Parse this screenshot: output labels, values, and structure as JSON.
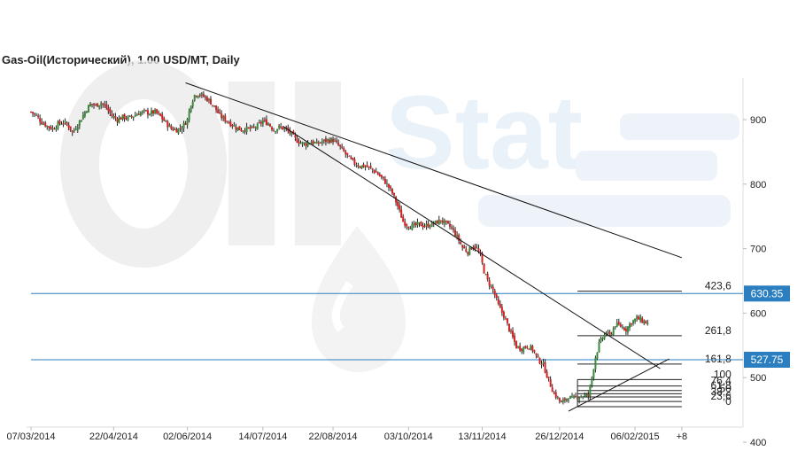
{
  "chart_data": {
    "type": "candlestick",
    "title": "Gas-Oil(Исторический), 1.00 USD/MT, Daily",
    "ylim": [
      400,
      960
    ],
    "y_ticks": [
      400,
      500,
      600,
      700,
      800,
      900
    ],
    "x_ticks": [
      "07/03/2014",
      "22/04/2014",
      "02/06/2014",
      "14/07/2014",
      "22/08/2014",
      "03/10/2014",
      "13/11/2014",
      "26/12/2014",
      "06/02/2015",
      "+8"
    ],
    "x_range_days": [
      0,
      367
    ],
    "x_tick_days": [
      0,
      46,
      87,
      129,
      168,
      210,
      251,
      294,
      336,
      362
    ],
    "up_color": "#3a8a3a",
    "down_color": "#d42020",
    "closes": [
      [
        0,
        912
      ],
      [
        3,
        906
      ],
      [
        6,
        896
      ],
      [
        9,
        890
      ],
      [
        12,
        886
      ],
      [
        15,
        893
      ],
      [
        18,
        896
      ],
      [
        21,
        890
      ],
      [
        23,
        880
      ],
      [
        25,
        888
      ],
      [
        27,
        897
      ],
      [
        30,
        912
      ],
      [
        33,
        924
      ],
      [
        36,
        922
      ],
      [
        39,
        926
      ],
      [
        42,
        918
      ],
      [
        45,
        906
      ],
      [
        48,
        900
      ],
      [
        51,
        904
      ],
      [
        54,
        902
      ],
      [
        57,
        906
      ],
      [
        60,
        910
      ],
      [
        63,
        912
      ],
      [
        66,
        910
      ],
      [
        69,
        912
      ],
      [
        72,
        905
      ],
      [
        75,
        895
      ],
      [
        78,
        886
      ],
      [
        81,
        884
      ],
      [
        84,
        888
      ],
      [
        87,
        900
      ],
      [
        89,
        925
      ],
      [
        91,
        938
      ],
      [
        93,
        940
      ],
      [
        96,
        936
      ],
      [
        99,
        930
      ],
      [
        102,
        920
      ],
      [
        105,
        906
      ],
      [
        108,
        900
      ],
      [
        111,
        894
      ],
      [
        114,
        888
      ],
      [
        117,
        884
      ],
      [
        120,
        886
      ],
      [
        123,
        886
      ],
      [
        126,
        890
      ],
      [
        129,
        898
      ],
      [
        132,
        894
      ],
      [
        135,
        884
      ],
      [
        138,
        888
      ],
      [
        141,
        886
      ],
      [
        144,
        880
      ],
      [
        147,
        870
      ],
      [
        150,
        864
      ],
      [
        153,
        862
      ],
      [
        156,
        866
      ],
      [
        159,
        862
      ],
      [
        162,
        866
      ],
      [
        165,
        868
      ],
      [
        168,
        868
      ],
      [
        171,
        860
      ],
      [
        174,
        850
      ],
      [
        177,
        840
      ],
      [
        180,
        832
      ],
      [
        183,
        828
      ],
      [
        186,
        828
      ],
      [
        189,
        824
      ],
      [
        192,
        818
      ],
      [
        195,
        810
      ],
      [
        198,
        800
      ],
      [
        201,
        786
      ],
      [
        204,
        766
      ],
      [
        207,
        742
      ],
      [
        210,
        735
      ],
      [
        213,
        735
      ],
      [
        216,
        738
      ],
      [
        219,
        735
      ],
      [
        222,
        737
      ],
      [
        225,
        740
      ],
      [
        228,
        744
      ],
      [
        231,
        738
      ],
      [
        234,
        732
      ],
      [
        237,
        718
      ],
      [
        240,
        702
      ],
      [
        243,
        695
      ],
      [
        246,
        705
      ],
      [
        248,
        700
      ],
      [
        250,
        688
      ],
      [
        252,
        665
      ],
      [
        254,
        650
      ],
      [
        257,
        636
      ],
      [
        260,
        612
      ],
      [
        263,
        596
      ],
      [
        266,
        575
      ],
      [
        268,
        562
      ],
      [
        270,
        548
      ],
      [
        273,
        545
      ],
      [
        276,
        549
      ],
      [
        279,
        544
      ],
      [
        282,
        528
      ],
      [
        285,
        520
      ],
      [
        288,
        495
      ],
      [
        291,
        475
      ],
      [
        293,
        468
      ],
      [
        295,
        460
      ],
      [
        297,
        466
      ],
      [
        299,
        470
      ],
      [
        301,
        467
      ],
      [
        304,
        470
      ],
      [
        307,
        472
      ],
      [
        310,
        472
      ],
      [
        312,
        500
      ],
      [
        314,
        532
      ],
      [
        316,
        552
      ],
      [
        318,
        562
      ],
      [
        320,
        570
      ],
      [
        322,
        565
      ],
      [
        325,
        582
      ],
      [
        328,
        580
      ],
      [
        331,
        575
      ],
      [
        334,
        586
      ],
      [
        337,
        592
      ],
      [
        340,
        588
      ],
      [
        343,
        584
      ]
    ],
    "trendlines": [
      {
        "from": [
          86,
          957
        ],
        "to": [
          362,
          686
        ]
      },
      {
        "from": [
          140,
          890
        ],
        "to": [
          350,
          514
        ]
      },
      {
        "from": [
          299,
          448
        ],
        "to": [
          355,
          529
        ]
      }
    ],
    "horizontal_lines": [
      {
        "value": 630.35,
        "label": "630.35",
        "color": "#2b7fc1"
      },
      {
        "value": 527.75,
        "label": "527.75",
        "color": "#2b7fc1"
      }
    ],
    "fibonacci": {
      "x_start_day": 304,
      "x_end_day": 362,
      "levels": [
        {
          "label": "423,6",
          "value": 634
        },
        {
          "label": "261,8",
          "value": 565
        },
        {
          "label": "161,8",
          "value": 521
        },
        {
          "label": "100",
          "value": 497
        },
        {
          "label": "76,4",
          "value": 487
        },
        {
          "label": "61,8",
          "value": 480
        },
        {
          "label": "50",
          "value": 475
        },
        {
          "label": "38,2",
          "value": 470
        },
        {
          "label": "23,6",
          "value": 463
        },
        {
          "label": "0",
          "value": 455
        }
      ]
    },
    "grid": false,
    "legend": "none"
  }
}
